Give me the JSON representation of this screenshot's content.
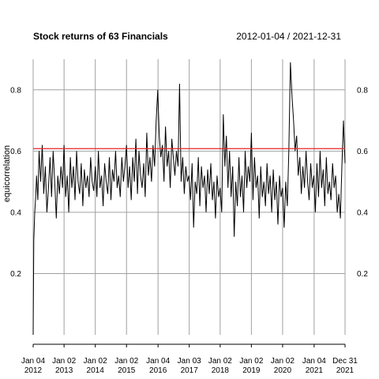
{
  "chart_data": {
    "type": "line",
    "title": "Stock returns of 63 Financials",
    "date_range": "2012-01-04 / 2021-12-31",
    "ylabel": "equicorrelation",
    "xlabel": "",
    "ylim": [
      0.0,
      0.9
    ],
    "y_ticks": [
      "0.2",
      "0.4",
      "0.6",
      "0.8"
    ],
    "y_tick_values": [
      0.2,
      0.4,
      0.6,
      0.8
    ],
    "x_ticks": [
      {
        "line1": "Jan 04",
        "line2": "2012",
        "year": 2012.01
      },
      {
        "line1": "Jan 02",
        "line2": "2013",
        "year": 2013.0
      },
      {
        "line1": "Jan 02",
        "line2": "2014",
        "year": 2014.0
      },
      {
        "line1": "Jan 02",
        "line2": "2015",
        "year": 2015.0
      },
      {
        "line1": "Jan 04",
        "line2": "2016",
        "year": 2016.01
      },
      {
        "line1": "Jan 03",
        "line2": "2017",
        "year": 2017.01
      },
      {
        "line1": "Jan 02",
        "line2": "2018",
        "year": 2018.0
      },
      {
        "line1": "Jan 02",
        "line2": "2019",
        "year": 2019.0
      },
      {
        "line1": "Jan 02",
        "line2": "2020",
        "year": 2020.0
      },
      {
        "line1": "Jan 04",
        "line2": "2021",
        "year": 2021.01
      },
      {
        "line1": "Dec 31",
        "line2": "2021",
        "year": 2022.0
      }
    ],
    "reference_line": {
      "value": 0.608,
      "color": "#e8232a"
    },
    "grid": true,
    "series": [
      {
        "color": "#000000",
        "x": [
          2012.01,
          2012.03,
          2012.06,
          2012.09,
          2012.12,
          2012.16,
          2012.2,
          2012.25,
          2012.3,
          2012.35,
          2012.4,
          2012.45,
          2012.5,
          2012.55,
          2012.6,
          2012.65,
          2012.7,
          2012.75,
          2012.8,
          2012.85,
          2012.9,
          2012.95,
          2013.0,
          2013.05,
          2013.1,
          2013.15,
          2013.2,
          2013.25,
          2013.3,
          2013.35,
          2013.4,
          2013.45,
          2013.5,
          2013.55,
          2013.6,
          2013.65,
          2013.7,
          2013.75,
          2013.8,
          2013.85,
          2013.9,
          2013.95,
          2014.0,
          2014.05,
          2014.1,
          2014.15,
          2014.2,
          2014.25,
          2014.3,
          2014.35,
          2014.4,
          2014.45,
          2014.5,
          2014.55,
          2014.6,
          2014.65,
          2014.7,
          2014.75,
          2014.8,
          2014.85,
          2014.9,
          2014.95,
          2015.0,
          2015.05,
          2015.1,
          2015.15,
          2015.2,
          2015.25,
          2015.3,
          2015.35,
          2015.4,
          2015.45,
          2015.5,
          2015.55,
          2015.6,
          2015.65,
          2015.7,
          2015.75,
          2015.8,
          2015.85,
          2015.9,
          2015.95,
          2016.0,
          2016.05,
          2016.1,
          2016.15,
          2016.2,
          2016.25,
          2016.3,
          2016.35,
          2016.4,
          2016.45,
          2016.5,
          2016.55,
          2016.6,
          2016.65,
          2016.7,
          2016.75,
          2016.8,
          2016.85,
          2016.9,
          2016.95,
          2017.0,
          2017.05,
          2017.1,
          2017.15,
          2017.2,
          2017.25,
          2017.3,
          2017.35,
          2017.4,
          2017.45,
          2017.5,
          2017.55,
          2017.6,
          2017.65,
          2017.7,
          2017.75,
          2017.8,
          2017.85,
          2017.9,
          2017.95,
          2018.0,
          2018.05,
          2018.1,
          2018.15,
          2018.2,
          2018.25,
          2018.3,
          2018.35,
          2018.4,
          2018.45,
          2018.5,
          2018.55,
          2018.6,
          2018.65,
          2018.7,
          2018.75,
          2018.8,
          2018.85,
          2018.9,
          2018.95,
          2019.0,
          2019.05,
          2019.1,
          2019.15,
          2019.2,
          2019.25,
          2019.3,
          2019.35,
          2019.4,
          2019.45,
          2019.5,
          2019.55,
          2019.6,
          2019.65,
          2019.7,
          2019.75,
          2019.8,
          2019.85,
          2019.9,
          2019.95,
          2020.0,
          2020.05,
          2020.1,
          2020.15,
          2020.2,
          2020.25,
          2020.3,
          2020.35,
          2020.4,
          2020.45,
          2020.5,
          2020.55,
          2020.6,
          2020.65,
          2020.7,
          2020.75,
          2020.8,
          2020.85,
          2020.9,
          2020.95,
          2021.0,
          2021.05,
          2021.1,
          2021.15,
          2021.2,
          2021.25,
          2021.3,
          2021.35,
          2021.4,
          2021.45,
          2021.5,
          2021.55,
          2021.6,
          2021.65,
          2021.7,
          2021.75,
          2021.8,
          2021.85,
          2021.9,
          2021.95,
          2022.0
        ],
        "y": [
          0.0,
          0.31,
          0.4,
          0.45,
          0.52,
          0.44,
          0.6,
          0.5,
          0.62,
          0.46,
          0.55,
          0.4,
          0.48,
          0.58,
          0.45,
          0.6,
          0.5,
          0.38,
          0.52,
          0.46,
          0.55,
          0.48,
          0.62,
          0.45,
          0.52,
          0.4,
          0.58,
          0.48,
          0.55,
          0.44,
          0.6,
          0.5,
          0.46,
          0.56,
          0.42,
          0.54,
          0.48,
          0.52,
          0.45,
          0.58,
          0.5,
          0.47,
          0.55,
          0.45,
          0.6,
          0.48,
          0.52,
          0.42,
          0.56,
          0.5,
          0.46,
          0.58,
          0.44,
          0.54,
          0.5,
          0.6,
          0.48,
          0.52,
          0.45,
          0.58,
          0.5,
          0.55,
          0.62,
          0.48,
          0.55,
          0.44,
          0.58,
          0.5,
          0.64,
          0.46,
          0.6,
          0.52,
          0.48,
          0.56,
          0.45,
          0.66,
          0.52,
          0.58,
          0.5,
          0.62,
          0.55,
          0.7,
          0.8,
          0.65,
          0.58,
          0.62,
          0.5,
          0.68,
          0.55,
          0.6,
          0.48,
          0.64,
          0.58,
          0.52,
          0.6,
          0.55,
          0.82,
          0.5,
          0.58,
          0.46,
          0.55,
          0.5,
          0.52,
          0.44,
          0.56,
          0.35,
          0.5,
          0.46,
          0.58,
          0.42,
          0.55,
          0.48,
          0.52,
          0.4,
          0.54,
          0.46,
          0.56,
          0.44,
          0.5,
          0.38,
          0.52,
          0.45,
          0.48,
          0.4,
          0.72,
          0.55,
          0.65,
          0.48,
          0.6,
          0.45,
          0.55,
          0.32,
          0.5,
          0.42,
          0.58,
          0.45,
          0.52,
          0.4,
          0.6,
          0.48,
          0.55,
          0.5,
          0.66,
          0.44,
          0.58,
          0.48,
          0.52,
          0.38,
          0.55,
          0.45,
          0.5,
          0.42,
          0.56,
          0.46,
          0.52,
          0.4,
          0.54,
          0.44,
          0.5,
          0.36,
          0.52,
          0.45,
          0.48,
          0.35,
          0.5,
          0.42,
          0.6,
          0.89,
          0.78,
          0.7,
          0.6,
          0.65,
          0.52,
          0.58,
          0.46,
          0.55,
          0.48,
          0.6,
          0.5,
          0.44,
          0.56,
          0.48,
          0.52,
          0.4,
          0.56,
          0.45,
          0.6,
          0.48,
          0.54,
          0.42,
          0.58,
          0.46,
          0.5,
          0.44,
          0.56,
          0.48,
          0.52,
          0.4,
          0.46,
          0.38,
          0.55,
          0.7,
          0.56
        ]
      }
    ]
  }
}
